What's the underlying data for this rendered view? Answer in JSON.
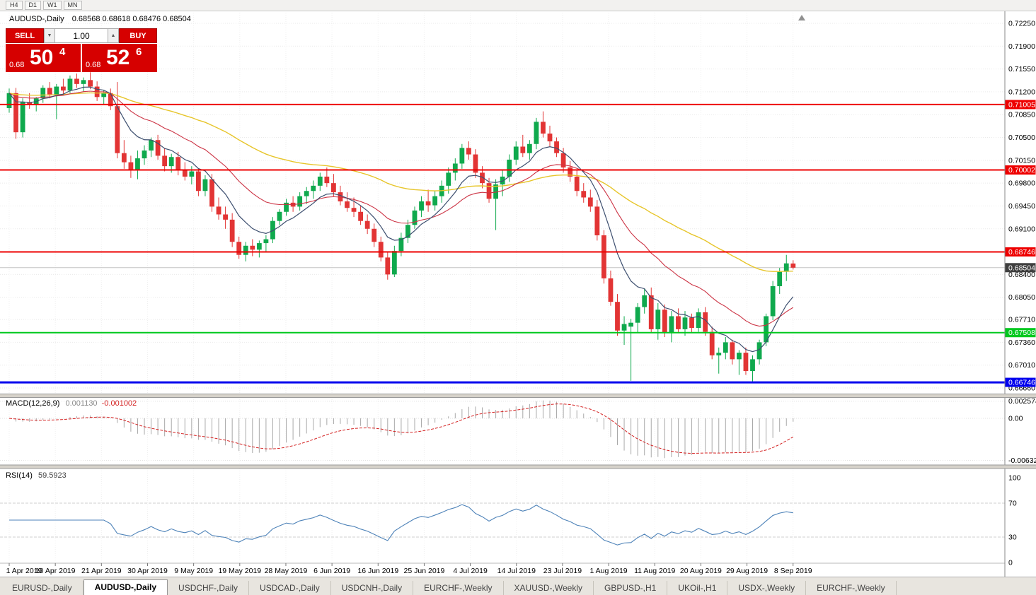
{
  "topbar": {
    "periods": [
      "H4",
      "D1",
      "W1",
      "MN"
    ]
  },
  "header": {
    "symbol": "AUDUSD-,Daily",
    "ohlc": "0.68568 0.68618 0.68476 0.68504"
  },
  "trade": {
    "sell_label": "SELL",
    "buy_label": "BUY",
    "volume": "1.00",
    "sell_price": {
      "base": "0.68",
      "big": "50",
      "sup": "4"
    },
    "buy_price": {
      "base": "0.68",
      "big": "52",
      "sup": "6"
    }
  },
  "icons": {
    "volume_down": "▼",
    "volume_up": "▲"
  },
  "macd": {
    "title": "MACD(12,26,9)",
    "value_main": "0.001130",
    "value_signal": "-0.001002",
    "axis": [
      "0.002574",
      "0.00",
      "-0.006326"
    ]
  },
  "rsi": {
    "title": "RSI(14)",
    "value": "59.5923",
    "axis": [
      "100",
      "70",
      "30",
      "0"
    ]
  },
  "tabs": [
    {
      "label": "EURUSD-,Daily",
      "active": false
    },
    {
      "label": "AUDUSD-,Daily",
      "active": true
    },
    {
      "label": "USDCHF-,Daily",
      "active": false
    },
    {
      "label": "USDCAD-,Daily",
      "active": false
    },
    {
      "label": "USDCNH-,Daily",
      "active": false
    },
    {
      "label": "EURCHF-,Weekly",
      "active": false
    },
    {
      "label": "XAUUSD-,Weekly",
      "active": false
    },
    {
      "label": "GBPUSD-,H1",
      "active": false
    },
    {
      "label": "UKOil-,H1",
      "active": false
    },
    {
      "label": "USDX-,Weekly",
      "active": false
    },
    {
      "label": "EURCHF-,Weekly",
      "active": false
    }
  ],
  "colors": {
    "candle_up": "#0fa94d",
    "candle_down": "#e23434",
    "ma_fast": "#3d4f6f",
    "ma_mid": "#cc3344",
    "ma_slow": "#e7c52a",
    "macd_hist": "#a8a8a8",
    "macd_signal": "#d42222",
    "rsi_line": "#4d82b8",
    "current_tag": "#3f3f3f",
    "panel_red": "#d60000"
  },
  "chart_data": {
    "type": "candlestick",
    "title": "AUDUSD-,Daily",
    "current_price": 0.68504,
    "current_price_label": "0.68504",
    "y_axis_labels": [
      "0.72250",
      "0.71900",
      "0.71550",
      "0.71200",
      "0.70850",
      "0.70500",
      "0.70150",
      "0.69800",
      "0.69450",
      "0.69100",
      "0.68750",
      "0.68400",
      "0.68050",
      "0.67710",
      "0.67360",
      "0.67010",
      "0.66660"
    ],
    "x_labels": [
      "1 Apr 2019",
      "10 Apr 2019",
      "21 Apr 2019",
      "30 Apr 2019",
      "9 May 2019",
      "19 May 2019",
      "28 May 2019",
      "6 Jun 2019",
      "16 Jun 2019",
      "25 Jun 2019",
      "4 Jul 2019",
      "14 Jul 2019",
      "23 Jul 2019",
      "1 Aug 2019",
      "11 Aug 2019",
      "20 Aug 2019",
      "29 Aug 2019",
      "8 Sep 2019"
    ],
    "hlines": [
      {
        "price": 0.71005,
        "label": "0.71005",
        "color": "#ee0000",
        "width": 2
      },
      {
        "price": 0.70002,
        "label": "0.70002",
        "color": "#ee0000",
        "width": 2
      },
      {
        "price": 0.68746,
        "label": "0.68746",
        "color": "#ee0000",
        "width": 2
      },
      {
        "price": 0.67508,
        "label": "0.67508",
        "color": "#00c81e",
        "width": 2
      },
      {
        "price": 0.66746,
        "label": "0.66746",
        "color": "#0000ee",
        "width": 3
      }
    ],
    "candles": [
      [
        0.7095,
        0.7125,
        0.7088,
        0.7118
      ],
      [
        0.7118,
        0.7126,
        0.7048,
        0.7058
      ],
      [
        0.7058,
        0.711,
        0.705,
        0.7104
      ],
      [
        0.7104,
        0.7118,
        0.7094,
        0.71
      ],
      [
        0.71,
        0.7112,
        0.709,
        0.711
      ],
      [
        0.711,
        0.713,
        0.7103,
        0.7126
      ],
      [
        0.7126,
        0.7135,
        0.711,
        0.7116
      ],
      [
        0.7116,
        0.7132,
        0.7078,
        0.7128
      ],
      [
        0.7128,
        0.714,
        0.7116,
        0.7122
      ],
      [
        0.7122,
        0.7145,
        0.7118,
        0.714
      ],
      [
        0.714,
        0.7148,
        0.7126,
        0.7132
      ],
      [
        0.7132,
        0.7142,
        0.712,
        0.7138
      ],
      [
        0.7138,
        0.715,
        0.7124,
        0.7128
      ],
      [
        0.7128,
        0.7136,
        0.7106,
        0.7112
      ],
      [
        0.7112,
        0.7122,
        0.71,
        0.7118
      ],
      [
        0.7118,
        0.7125,
        0.7092,
        0.7098
      ],
      [
        0.7098,
        0.7135,
        0.7018,
        0.7026
      ],
      [
        0.7026,
        0.7046,
        0.7002,
        0.7012
      ],
      [
        0.7012,
        0.7022,
        0.6988,
        0.7
      ],
      [
        0.7,
        0.703,
        0.6986,
        0.7018
      ],
      [
        0.7018,
        0.7038,
        0.7008,
        0.703
      ],
      [
        0.703,
        0.705,
        0.702,
        0.7046
      ],
      [
        0.7046,
        0.7054,
        0.7016,
        0.7022
      ],
      [
        0.7022,
        0.7034,
        0.6998,
        0.7006
      ],
      [
        0.7006,
        0.7025,
        0.6996,
        0.702
      ],
      [
        0.702,
        0.7028,
        0.6992,
        0.7
      ],
      [
        0.7,
        0.7012,
        0.6984,
        0.699
      ],
      [
        0.699,
        0.7006,
        0.6978,
        0.6998
      ],
      [
        0.6998,
        0.7002,
        0.696,
        0.6968
      ],
      [
        0.6968,
        0.6992,
        0.696,
        0.6986
      ],
      [
        0.6986,
        0.6994,
        0.6936,
        0.6944
      ],
      [
        0.6944,
        0.6958,
        0.6924,
        0.6932
      ],
      [
        0.6932,
        0.6944,
        0.691,
        0.6924
      ],
      [
        0.6924,
        0.6934,
        0.6882,
        0.689
      ],
      [
        0.689,
        0.6898,
        0.6864,
        0.687
      ],
      [
        0.687,
        0.689,
        0.686,
        0.6884
      ],
      [
        0.6884,
        0.6894,
        0.6868,
        0.6878
      ],
      [
        0.6878,
        0.6892,
        0.6866,
        0.6888
      ],
      [
        0.6888,
        0.69,
        0.6874,
        0.6894
      ],
      [
        0.6894,
        0.6928,
        0.6888,
        0.6922
      ],
      [
        0.6922,
        0.694,
        0.6916,
        0.6936
      ],
      [
        0.6936,
        0.6956,
        0.693,
        0.695
      ],
      [
        0.695,
        0.696,
        0.6936,
        0.6944
      ],
      [
        0.6944,
        0.6966,
        0.6938,
        0.696
      ],
      [
        0.696,
        0.6974,
        0.6948,
        0.6968
      ],
      [
        0.6968,
        0.6984,
        0.6956,
        0.6976
      ],
      [
        0.6976,
        0.6996,
        0.6968,
        0.699
      ],
      [
        0.699,
        0.7004,
        0.6974,
        0.698
      ],
      [
        0.698,
        0.6994,
        0.696,
        0.6966
      ],
      [
        0.6966,
        0.6976,
        0.6946,
        0.6952
      ],
      [
        0.6952,
        0.6966,
        0.6936,
        0.6942
      ],
      [
        0.6942,
        0.6958,
        0.6928,
        0.6936
      ],
      [
        0.6936,
        0.6946,
        0.6916,
        0.6922
      ],
      [
        0.6922,
        0.6932,
        0.6902,
        0.691
      ],
      [
        0.691,
        0.6918,
        0.6882,
        0.689
      ],
      [
        0.689,
        0.6898,
        0.686,
        0.6866
      ],
      [
        0.6866,
        0.6874,
        0.6832,
        0.684
      ],
      [
        0.684,
        0.6884,
        0.6836,
        0.6876
      ],
      [
        0.6876,
        0.6904,
        0.6868,
        0.6896
      ],
      [
        0.6896,
        0.6924,
        0.6888,
        0.6916
      ],
      [
        0.6916,
        0.6944,
        0.691,
        0.6938
      ],
      [
        0.6938,
        0.696,
        0.6928,
        0.6952
      ],
      [
        0.6952,
        0.697,
        0.6936,
        0.6946
      ],
      [
        0.6946,
        0.6968,
        0.6938,
        0.696
      ],
      [
        0.696,
        0.6984,
        0.695,
        0.6976
      ],
      [
        0.6976,
        0.7004,
        0.6964,
        0.6996
      ],
      [
        0.6996,
        0.7018,
        0.6984,
        0.701
      ],
      [
        0.701,
        0.704,
        0.7002,
        0.7034
      ],
      [
        0.7034,
        0.7044,
        0.7016,
        0.7024
      ],
      [
        0.7024,
        0.7032,
        0.6988,
        0.6996
      ],
      [
        0.6996,
        0.7006,
        0.6972,
        0.698
      ],
      [
        0.698,
        0.6988,
        0.695,
        0.6956
      ],
      [
        0.6956,
        0.6986,
        0.6908,
        0.6978
      ],
      [
        0.6978,
        0.7,
        0.696,
        0.699
      ],
      [
        0.699,
        0.7024,
        0.6982,
        0.7016
      ],
      [
        0.7016,
        0.7044,
        0.7008,
        0.7036
      ],
      [
        0.7036,
        0.7054,
        0.702,
        0.7026
      ],
      [
        0.7026,
        0.7046,
        0.7016,
        0.704
      ],
      [
        0.704,
        0.708,
        0.7032,
        0.7074
      ],
      [
        0.7074,
        0.709,
        0.705,
        0.7056
      ],
      [
        0.7056,
        0.7068,
        0.7036,
        0.7044
      ],
      [
        0.7044,
        0.705,
        0.702,
        0.7026
      ],
      [
        0.7026,
        0.7034,
        0.6996,
        0.7004
      ],
      [
        0.7004,
        0.7014,
        0.6982,
        0.699
      ],
      [
        0.699,
        0.7,
        0.696,
        0.6968
      ],
      [
        0.6968,
        0.698,
        0.695,
        0.6958
      ],
      [
        0.6958,
        0.697,
        0.6936,
        0.6944
      ],
      [
        0.6944,
        0.6954,
        0.6892,
        0.69
      ],
      [
        0.69,
        0.6908,
        0.6826,
        0.6834
      ],
      [
        0.6834,
        0.6846,
        0.6792,
        0.6798
      ],
      [
        0.6798,
        0.681,
        0.6746,
        0.6754
      ],
      [
        0.6754,
        0.6776,
        0.6732,
        0.6764
      ],
      [
        0.676,
        0.6772,
        0.6677,
        0.6766
      ],
      [
        0.6766,
        0.6796,
        0.675,
        0.679
      ],
      [
        0.679,
        0.6818,
        0.678,
        0.6808
      ],
      [
        0.6808,
        0.682,
        0.675,
        0.6756
      ],
      [
        0.6756,
        0.6796,
        0.674,
        0.6786
      ],
      [
        0.6786,
        0.6794,
        0.6744,
        0.675
      ],
      [
        0.675,
        0.6784,
        0.6736,
        0.6776
      ],
      [
        0.6776,
        0.6788,
        0.675,
        0.6756
      ],
      [
        0.6756,
        0.6784,
        0.6746,
        0.6774
      ],
      [
        0.6774,
        0.678,
        0.675,
        0.6758
      ],
      [
        0.6758,
        0.6788,
        0.6752,
        0.6782
      ],
      [
        0.6782,
        0.679,
        0.6746,
        0.6752
      ],
      [
        0.6752,
        0.676,
        0.671,
        0.6716
      ],
      [
        0.6716,
        0.6728,
        0.6688,
        0.672
      ],
      [
        0.672,
        0.6744,
        0.671,
        0.6736
      ],
      [
        0.6736,
        0.674,
        0.6702,
        0.671
      ],
      [
        0.671,
        0.6724,
        0.6686,
        0.672
      ],
      [
        0.672,
        0.6728,
        0.6686,
        0.6692
      ],
      [
        0.6692,
        0.6716,
        0.6676,
        0.671
      ],
      [
        0.671,
        0.674,
        0.6702,
        0.6736
      ],
      [
        0.6736,
        0.678,
        0.673,
        0.6776
      ],
      [
        0.6776,
        0.683,
        0.677,
        0.6822
      ],
      [
        0.6822,
        0.685,
        0.681,
        0.6844
      ],
      [
        0.6844,
        0.687,
        0.683,
        0.6857
      ],
      [
        0.68568,
        0.68618,
        0.68476,
        0.68504
      ]
    ]
  }
}
